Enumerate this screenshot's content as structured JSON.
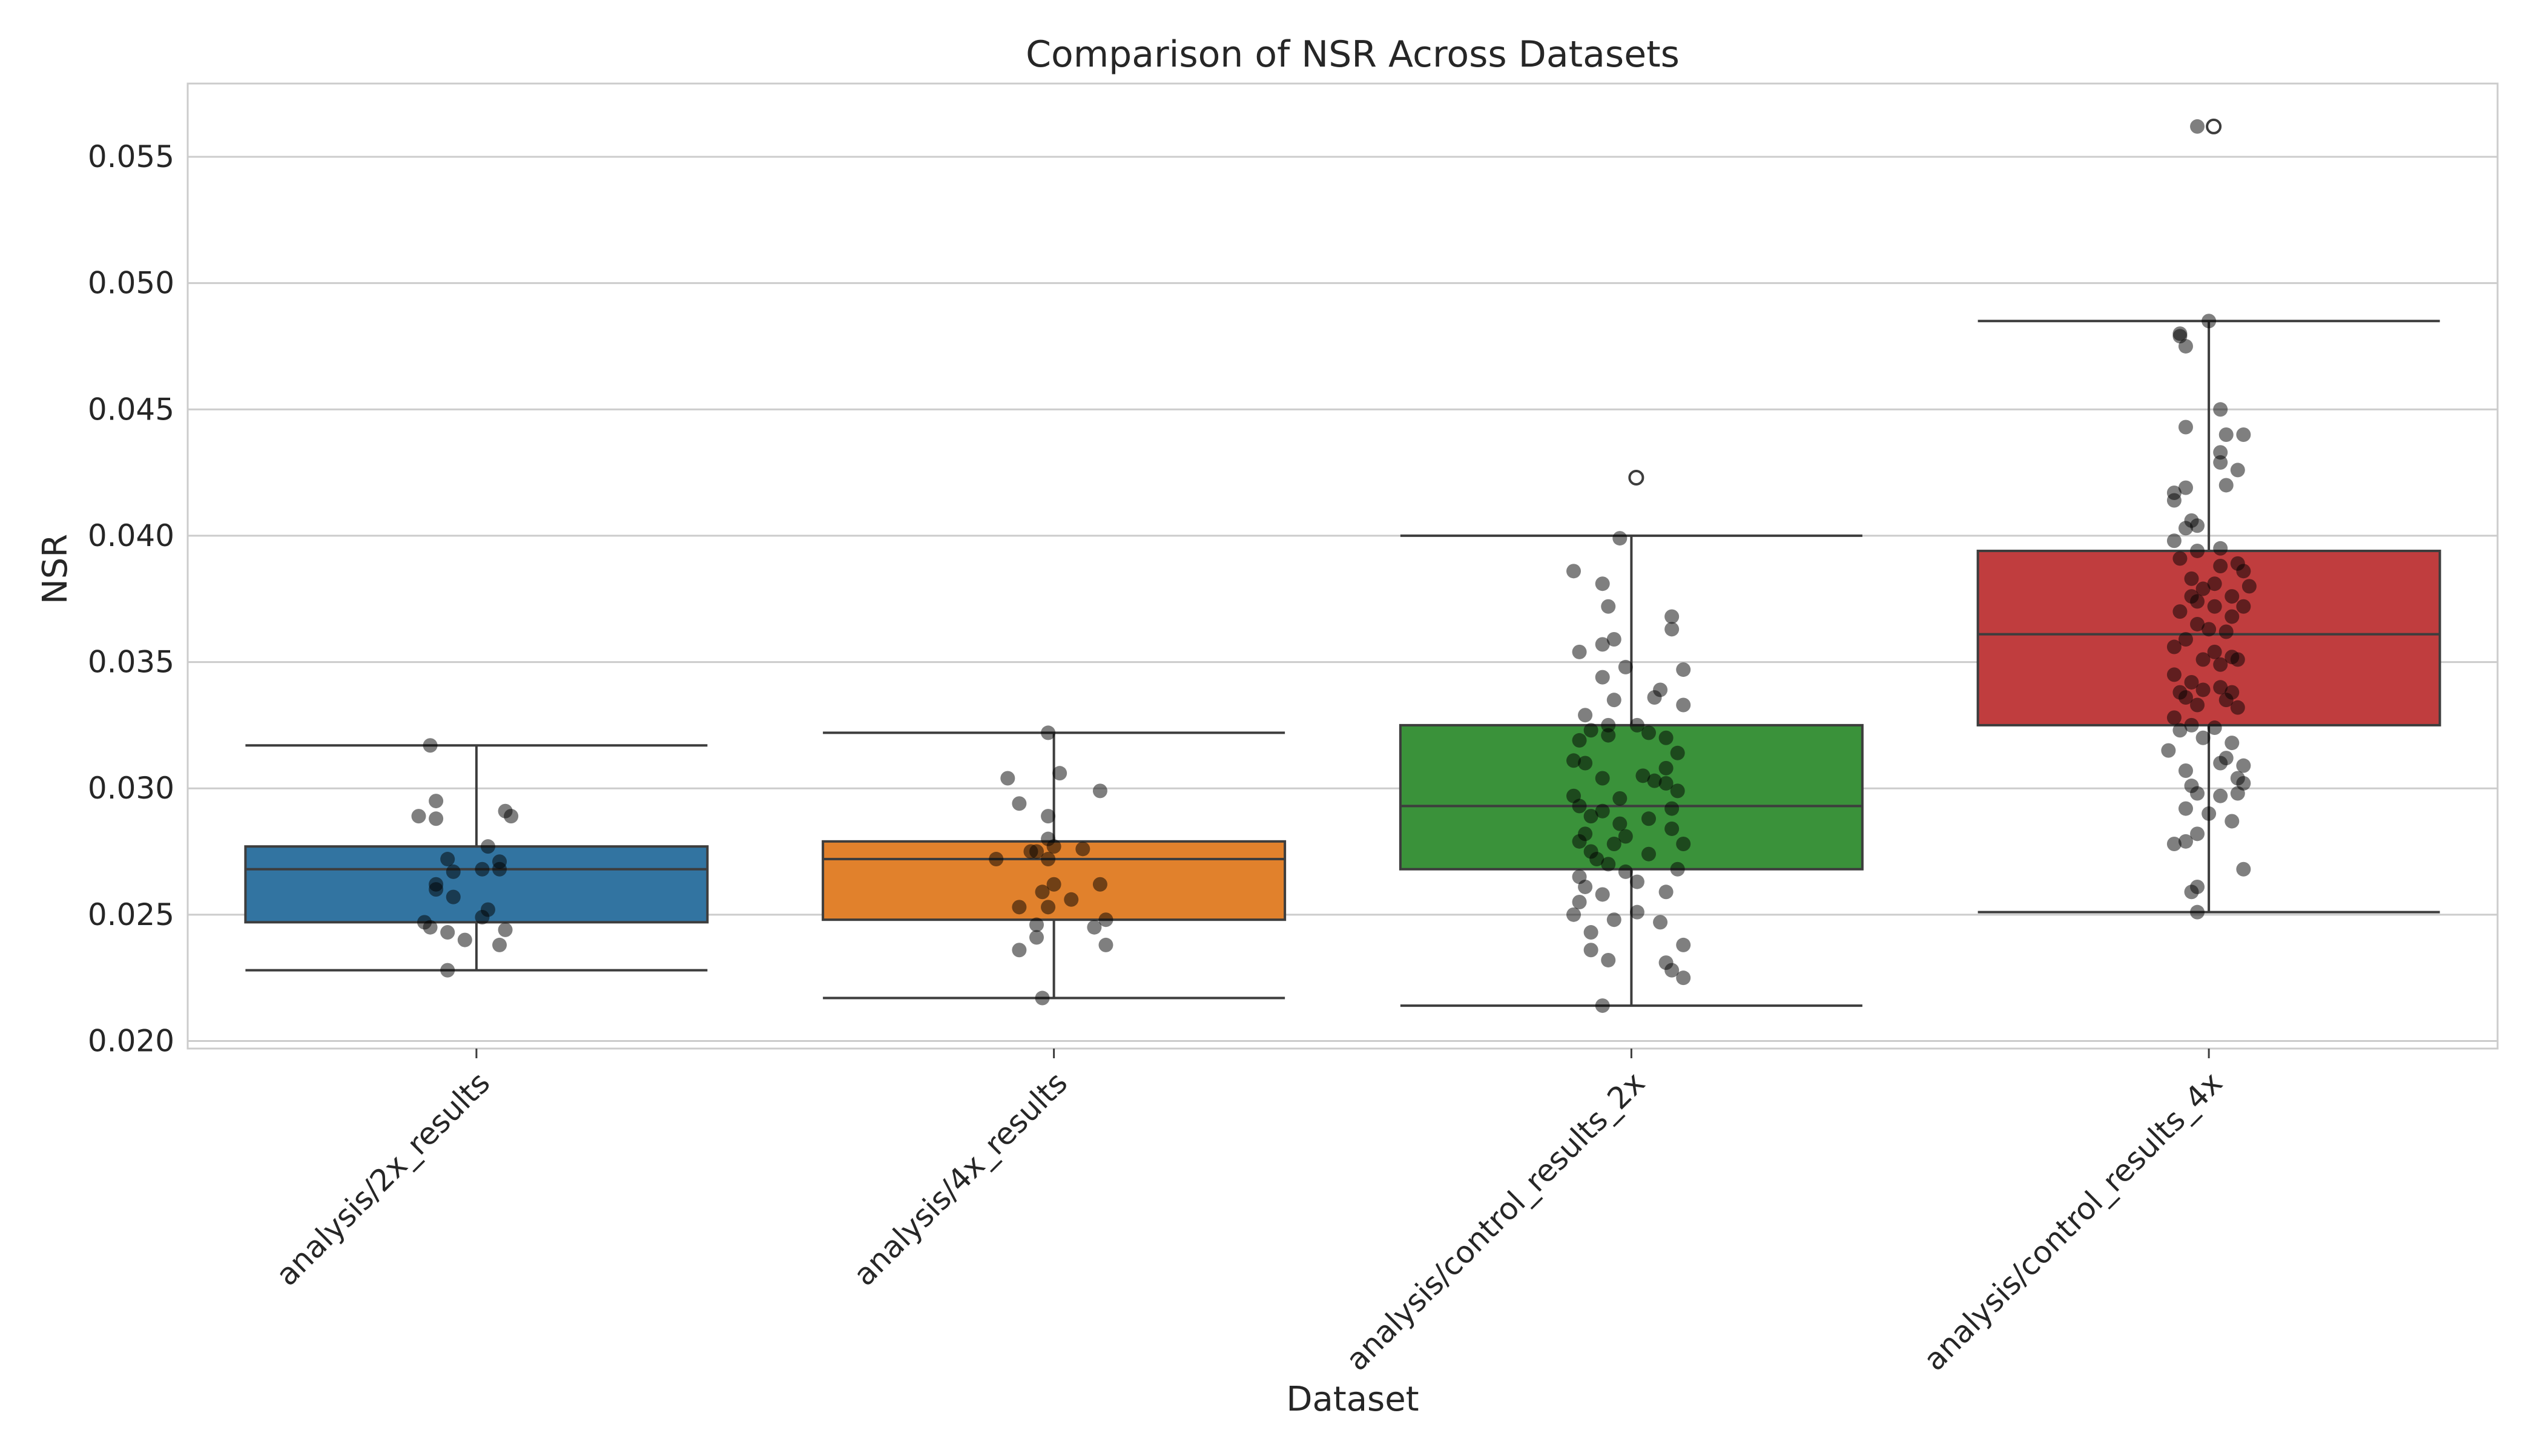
{
  "chart_data": {
    "type": "box",
    "title": "Comparison of NSR Across Datasets",
    "xlabel": "Dataset",
    "ylabel": "NSR",
    "ylim": [
      0.0197,
      0.0579
    ],
    "yticks": [
      0.02,
      0.025,
      0.03,
      0.035,
      0.04,
      0.045,
      0.05,
      0.055
    ],
    "ytick_labels": [
      "0.020",
      "0.025",
      "0.030",
      "0.035",
      "0.040",
      "0.045",
      "0.050",
      "0.055"
    ],
    "grid": true,
    "categories": [
      "analysis/2x_results",
      "analysis/4x_results",
      "analysis/control_results_2x",
      "analysis/control_results_4x"
    ],
    "colors": [
      "#3274a1",
      "#e1812c",
      "#3a923a",
      "#c03d3e"
    ],
    "point_color": "#000000",
    "boxes": [
      {
        "min": 0.0228,
        "q1": 0.0247,
        "median": 0.0268,
        "q3": 0.0277,
        "max": 0.0317,
        "outliers": []
      },
      {
        "min": 0.0217,
        "q1": 0.0248,
        "median": 0.0272,
        "q3": 0.0279,
        "max": 0.0322,
        "outliers": []
      },
      {
        "min": 0.0214,
        "q1": 0.0268,
        "median": 0.0293,
        "q3": 0.0325,
        "max": 0.04,
        "outliers": [
          0.0423
        ]
      },
      {
        "min": 0.0251,
        "q1": 0.0325,
        "median": 0.0361,
        "q3": 0.0394,
        "max": 0.0485,
        "outliers": [
          0.0562
        ]
      }
    ],
    "points": [
      [
        {
          "x": -0.08,
          "y": 0.0317
        },
        {
          "x": -0.07,
          "y": 0.0295
        },
        {
          "x": -0.1,
          "y": 0.0289
        },
        {
          "x": -0.07,
          "y": 0.0288
        },
        {
          "x": 0.05,
          "y": 0.0291
        },
        {
          "x": 0.06,
          "y": 0.0289
        },
        {
          "x": 0.02,
          "y": 0.0277
        },
        {
          "x": -0.05,
          "y": 0.0272
        },
        {
          "x": 0.04,
          "y": 0.0271
        },
        {
          "x": 0.01,
          "y": 0.0268
        },
        {
          "x": 0.04,
          "y": 0.0268
        },
        {
          "x": -0.04,
          "y": 0.0267
        },
        {
          "x": -0.07,
          "y": 0.0262
        },
        {
          "x": -0.07,
          "y": 0.026
        },
        {
          "x": -0.04,
          "y": 0.0257
        },
        {
          "x": 0.02,
          "y": 0.0252
        },
        {
          "x": 0.01,
          "y": 0.0249
        },
        {
          "x": -0.09,
          "y": 0.0247
        },
        {
          "x": -0.08,
          "y": 0.0245
        },
        {
          "x": 0.05,
          "y": 0.0244
        },
        {
          "x": -0.05,
          "y": 0.0243
        },
        {
          "x": -0.02,
          "y": 0.024
        },
        {
          "x": 0.04,
          "y": 0.0238
        },
        {
          "x": -0.05,
          "y": 0.0228
        }
      ],
      [
        {
          "x": -0.01,
          "y": 0.0322
        },
        {
          "x": -0.08,
          "y": 0.0304
        },
        {
          "x": 0.01,
          "y": 0.0306
        },
        {
          "x": -0.06,
          "y": 0.0294
        },
        {
          "x": 0.08,
          "y": 0.0299
        },
        {
          "x": -0.01,
          "y": 0.0289
        },
        {
          "x": -0.01,
          "y": 0.028
        },
        {
          "x": 0.0,
          "y": 0.0277
        },
        {
          "x": 0.05,
          "y": 0.0276
        },
        {
          "x": -0.04,
          "y": 0.0275
        },
        {
          "x": -0.03,
          "y": 0.0275
        },
        {
          "x": -0.1,
          "y": 0.0272
        },
        {
          "x": -0.01,
          "y": 0.0272
        },
        {
          "x": 0.0,
          "y": 0.0262
        },
        {
          "x": 0.08,
          "y": 0.0262
        },
        {
          "x": -0.02,
          "y": 0.0259
        },
        {
          "x": 0.03,
          "y": 0.0256
        },
        {
          "x": -0.06,
          "y": 0.0253
        },
        {
          "x": -0.01,
          "y": 0.0253
        },
        {
          "x": 0.09,
          "y": 0.0248
        },
        {
          "x": -0.03,
          "y": 0.0246
        },
        {
          "x": 0.07,
          "y": 0.0245
        },
        {
          "x": -0.03,
          "y": 0.0241
        },
        {
          "x": 0.09,
          "y": 0.0238
        },
        {
          "x": -0.06,
          "y": 0.0236
        },
        {
          "x": -0.02,
          "y": 0.0217
        }
      ],
      [
        {
          "x": -0.02,
          "y": 0.0399
        },
        {
          "x": -0.1,
          "y": 0.0386
        },
        {
          "x": -0.05,
          "y": 0.0381
        },
        {
          "x": -0.04,
          "y": 0.0372
        },
        {
          "x": 0.07,
          "y": 0.0368
        },
        {
          "x": 0.07,
          "y": 0.0363
        },
        {
          "x": -0.03,
          "y": 0.0359
        },
        {
          "x": -0.05,
          "y": 0.0357
        },
        {
          "x": -0.09,
          "y": 0.0354
        },
        {
          "x": -0.01,
          "y": 0.0348
        },
        {
          "x": 0.09,
          "y": 0.0347
        },
        {
          "x": -0.05,
          "y": 0.0344
        },
        {
          "x": 0.05,
          "y": 0.0339
        },
        {
          "x": 0.04,
          "y": 0.0336
        },
        {
          "x": -0.03,
          "y": 0.0335
        },
        {
          "x": 0.09,
          "y": 0.0333
        },
        {
          "x": -0.08,
          "y": 0.0329
        },
        {
          "x": -0.04,
          "y": 0.0325
        },
        {
          "x": 0.01,
          "y": 0.0325
        },
        {
          "x": -0.07,
          "y": 0.0323
        },
        {
          "x": 0.03,
          "y": 0.0322
        },
        {
          "x": -0.04,
          "y": 0.0321
        },
        {
          "x": 0.06,
          "y": 0.032
        },
        {
          "x": -0.09,
          "y": 0.0319
        },
        {
          "x": 0.08,
          "y": 0.0314
        },
        {
          "x": -0.1,
          "y": 0.0311
        },
        {
          "x": -0.08,
          "y": 0.031
        },
        {
          "x": 0.06,
          "y": 0.0308
        },
        {
          "x": 0.02,
          "y": 0.0305
        },
        {
          "x": -0.05,
          "y": 0.0304
        },
        {
          "x": 0.04,
          "y": 0.0303
        },
        {
          "x": 0.06,
          "y": 0.0302
        },
        {
          "x": 0.08,
          "y": 0.0299
        },
        {
          "x": -0.1,
          "y": 0.0297
        },
        {
          "x": -0.02,
          "y": 0.0296
        },
        {
          "x": -0.09,
          "y": 0.0293
        },
        {
          "x": 0.07,
          "y": 0.0292
        },
        {
          "x": -0.05,
          "y": 0.0291
        },
        {
          "x": -0.07,
          "y": 0.0289
        },
        {
          "x": 0.03,
          "y": 0.0288
        },
        {
          "x": -0.02,
          "y": 0.0286
        },
        {
          "x": 0.07,
          "y": 0.0284
        },
        {
          "x": -0.08,
          "y": 0.0282
        },
        {
          "x": -0.01,
          "y": 0.0281
        },
        {
          "x": -0.09,
          "y": 0.0279
        },
        {
          "x": 0.09,
          "y": 0.0278
        },
        {
          "x": -0.03,
          "y": 0.0278
        },
        {
          "x": -0.07,
          "y": 0.0275
        },
        {
          "x": 0.03,
          "y": 0.0274
        },
        {
          "x": -0.06,
          "y": 0.0272
        },
        {
          "x": -0.04,
          "y": 0.027
        },
        {
          "x": 0.08,
          "y": 0.0268
        },
        {
          "x": -0.01,
          "y": 0.0267
        },
        {
          "x": -0.09,
          "y": 0.0265
        },
        {
          "x": 0.01,
          "y": 0.0263
        },
        {
          "x": -0.08,
          "y": 0.0261
        },
        {
          "x": 0.06,
          "y": 0.0259
        },
        {
          "x": -0.05,
          "y": 0.0258
        },
        {
          "x": -0.09,
          "y": 0.0255
        },
        {
          "x": 0.01,
          "y": 0.0251
        },
        {
          "x": -0.1,
          "y": 0.025
        },
        {
          "x": 0.05,
          "y": 0.0247
        },
        {
          "x": -0.03,
          "y": 0.0248
        },
        {
          "x": -0.07,
          "y": 0.0243
        },
        {
          "x": 0.09,
          "y": 0.0238
        },
        {
          "x": -0.07,
          "y": 0.0236
        },
        {
          "x": -0.04,
          "y": 0.0232
        },
        {
          "x": 0.06,
          "y": 0.0231
        },
        {
          "x": 0.07,
          "y": 0.0228
        },
        {
          "x": 0.09,
          "y": 0.0225
        },
        {
          "x": -0.05,
          "y": 0.0214
        }
      ],
      [
        {
          "x": -0.05,
          "y": 0.048
        },
        {
          "x": -0.05,
          "y": 0.0479
        },
        {
          "x": -0.04,
          "y": 0.0475
        },
        {
          "x": 0.0,
          "y": 0.0485
        },
        {
          "x": 0.02,
          "y": 0.045
        },
        {
          "x": -0.04,
          "y": 0.0443
        },
        {
          "x": 0.03,
          "y": 0.044
        },
        {
          "x": 0.06,
          "y": 0.044
        },
        {
          "x": 0.02,
          "y": 0.0433
        },
        {
          "x": 0.02,
          "y": 0.0429
        },
        {
          "x": 0.05,
          "y": 0.0426
        },
        {
          "x": -0.04,
          "y": 0.0419
        },
        {
          "x": -0.06,
          "y": 0.0417
        },
        {
          "x": 0.03,
          "y": 0.042
        },
        {
          "x": -0.06,
          "y": 0.0414
        },
        {
          "x": -0.03,
          "y": 0.0406
        },
        {
          "x": -0.04,
          "y": 0.0403
        },
        {
          "x": -0.02,
          "y": 0.0404
        },
        {
          "x": -0.06,
          "y": 0.0398
        },
        {
          "x": 0.02,
          "y": 0.0395
        },
        {
          "x": -0.02,
          "y": 0.0394
        },
        {
          "x": -0.05,
          "y": 0.0391
        },
        {
          "x": 0.05,
          "y": 0.0389
        },
        {
          "x": 0.02,
          "y": 0.0388
        },
        {
          "x": 0.06,
          "y": 0.0386
        },
        {
          "x": -0.03,
          "y": 0.0383
        },
        {
          "x": -0.01,
          "y": 0.0379
        },
        {
          "x": 0.01,
          "y": 0.0381
        },
        {
          "x": 0.07,
          "y": 0.038
        },
        {
          "x": -0.03,
          "y": 0.0376
        },
        {
          "x": 0.04,
          "y": 0.0376
        },
        {
          "x": -0.02,
          "y": 0.0374
        },
        {
          "x": 0.01,
          "y": 0.0372
        },
        {
          "x": 0.06,
          "y": 0.0372
        },
        {
          "x": -0.05,
          "y": 0.037
        },
        {
          "x": 0.04,
          "y": 0.0368
        },
        {
          "x": -0.02,
          "y": 0.0365
        },
        {
          "x": 0.0,
          "y": 0.0363
        },
        {
          "x": 0.03,
          "y": 0.0362
        },
        {
          "x": -0.04,
          "y": 0.0359
        },
        {
          "x": -0.06,
          "y": 0.0356
        },
        {
          "x": 0.01,
          "y": 0.0354
        },
        {
          "x": 0.04,
          "y": 0.0352
        },
        {
          "x": 0.05,
          "y": 0.0351
        },
        {
          "x": -0.01,
          "y": 0.0351
        },
        {
          "x": 0.02,
          "y": 0.0349
        },
        {
          "x": -0.06,
          "y": 0.0345
        },
        {
          "x": -0.03,
          "y": 0.0342
        },
        {
          "x": 0.02,
          "y": 0.034
        },
        {
          "x": -0.01,
          "y": 0.0339
        },
        {
          "x": -0.05,
          "y": 0.0338
        },
        {
          "x": 0.04,
          "y": 0.0338
        },
        {
          "x": -0.04,
          "y": 0.0336
        },
        {
          "x": 0.03,
          "y": 0.0335
        },
        {
          "x": -0.02,
          "y": 0.0333
        },
        {
          "x": 0.05,
          "y": 0.0332
        },
        {
          "x": -0.06,
          "y": 0.0328
        },
        {
          "x": -0.03,
          "y": 0.0325
        },
        {
          "x": 0.01,
          "y": 0.0324
        },
        {
          "x": -0.05,
          "y": 0.0323
        },
        {
          "x": -0.01,
          "y": 0.032
        },
        {
          "x": 0.04,
          "y": 0.0318
        },
        {
          "x": -0.07,
          "y": 0.0315
        },
        {
          "x": 0.03,
          "y": 0.0312
        },
        {
          "x": 0.02,
          "y": 0.031
        },
        {
          "x": 0.06,
          "y": 0.0309
        },
        {
          "x": -0.04,
          "y": 0.0307
        },
        {
          "x": 0.05,
          "y": 0.0304
        },
        {
          "x": -0.03,
          "y": 0.0301
        },
        {
          "x": -0.02,
          "y": 0.0298
        },
        {
          "x": 0.06,
          "y": 0.0302
        },
        {
          "x": 0.05,
          "y": 0.0298
        },
        {
          "x": 0.02,
          "y": 0.0297
        },
        {
          "x": -0.04,
          "y": 0.0292
        },
        {
          "x": 0.0,
          "y": 0.029
        },
        {
          "x": 0.04,
          "y": 0.0287
        },
        {
          "x": -0.02,
          "y": 0.0282
        },
        {
          "x": -0.04,
          "y": 0.0279
        },
        {
          "x": -0.06,
          "y": 0.0278
        },
        {
          "x": 0.06,
          "y": 0.0268
        },
        {
          "x": -0.02,
          "y": 0.0261
        },
        {
          "x": -0.03,
          "y": 0.0259
        },
        {
          "x": -0.02,
          "y": 0.0251
        },
        {
          "x": -0.02,
          "y": 0.0562
        }
      ]
    ]
  }
}
